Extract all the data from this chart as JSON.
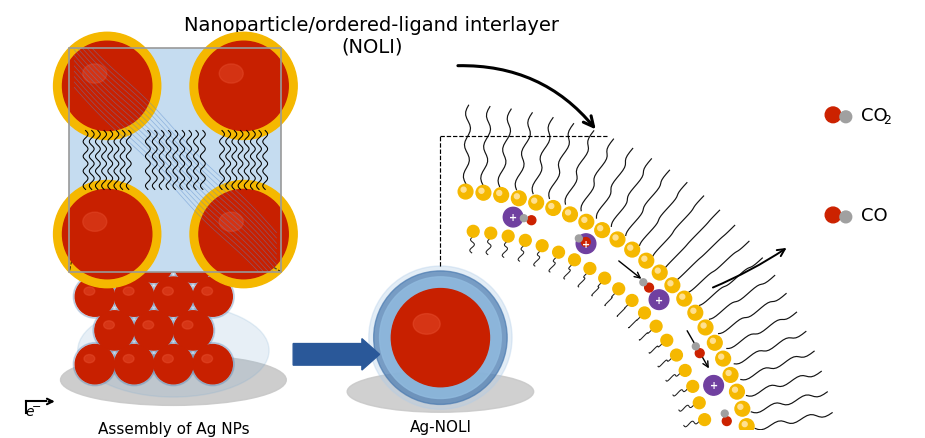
{
  "title_line1": "Nanoparticle/ordered-ligand interlayer",
  "title_line2": "(NOLI)",
  "label_assembly": "Assembly of Ag NPs",
  "label_agnoli": "Ag-NOLI",
  "bg_color": "#ffffff",
  "sphere_red": "#C82000",
  "sphere_red_dark": "#A01800",
  "sphere_highlight": "#E85030",
  "gold_color": "#F5B800",
  "green_layer": "#8ABE5A",
  "blue_light": "#C5DCF0",
  "blue_medium": "#7AAAD0",
  "blue_dark": "#4A7AB0",
  "purple_color": "#7040A0",
  "gray_oval": "#C8C8C8",
  "red_dot": "#CC2200",
  "gray_dot": "#A0A0A0",
  "arrow_blue": "#2A5899",
  "black": "#000000",
  "white": "#FFFFFF",
  "figsize": [
    9.25,
    4.39
  ],
  "dpi": 100
}
